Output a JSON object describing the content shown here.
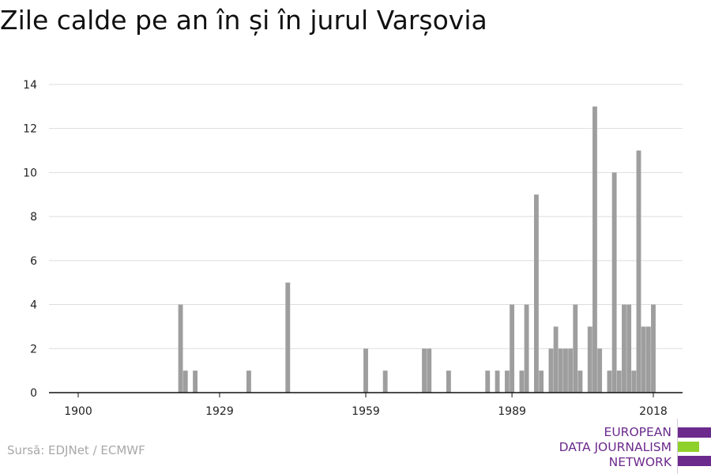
{
  "chart_data": {
    "type": "bar",
    "title": "Zile calde pe an în și în jurul Varșovia",
    "xlabel": "",
    "ylabel": "",
    "x_ticks": [
      1900,
      1929,
      1959,
      1989,
      2018
    ],
    "y_ticks": [
      0,
      2,
      4,
      6,
      8,
      10,
      12,
      14
    ],
    "xlim": [
      1894,
      2024
    ],
    "ylim": [
      0,
      14.5
    ],
    "grid": true,
    "bar_color": "#9e9e9e",
    "points": [
      {
        "x": 1921,
        "y": 4
      },
      {
        "x": 1922,
        "y": 1
      },
      {
        "x": 1924,
        "y": 1
      },
      {
        "x": 1935,
        "y": 1
      },
      {
        "x": 1943,
        "y": 5
      },
      {
        "x": 1959,
        "y": 2
      },
      {
        "x": 1963,
        "y": 1
      },
      {
        "x": 1971,
        "y": 2
      },
      {
        "x": 1972,
        "y": 2
      },
      {
        "x": 1976,
        "y": 1
      },
      {
        "x": 1984,
        "y": 1
      },
      {
        "x": 1986,
        "y": 1
      },
      {
        "x": 1988,
        "y": 1
      },
      {
        "x": 1989,
        "y": 4
      },
      {
        "x": 1991,
        "y": 1
      },
      {
        "x": 1992,
        "y": 4
      },
      {
        "x": 1994,
        "y": 9
      },
      {
        "x": 1995,
        "y": 1
      },
      {
        "x": 1997,
        "y": 2
      },
      {
        "x": 1998,
        "y": 3
      },
      {
        "x": 1999,
        "y": 2
      },
      {
        "x": 2000,
        "y": 2
      },
      {
        "x": 2001,
        "y": 2
      },
      {
        "x": 2002,
        "y": 4
      },
      {
        "x": 2003,
        "y": 1
      },
      {
        "x": 2005,
        "y": 3
      },
      {
        "x": 2006,
        "y": 13
      },
      {
        "x": 2007,
        "y": 2
      },
      {
        "x": 2009,
        "y": 1
      },
      {
        "x": 2010,
        "y": 10
      },
      {
        "x": 2011,
        "y": 1
      },
      {
        "x": 2012,
        "y": 4
      },
      {
        "x": 2013,
        "y": 4
      },
      {
        "x": 2014,
        "y": 1
      },
      {
        "x": 2015,
        "y": 11
      },
      {
        "x": 2016,
        "y": 3
      },
      {
        "x": 2017,
        "y": 3
      },
      {
        "x": 2018,
        "y": 4
      }
    ]
  },
  "source": "Sursă: EDJNet / ECMWF",
  "logo": {
    "line1": "EUROPEAN",
    "line2": "DATA JOURNALISM",
    "line3": "NETWORK",
    "color_purple": "#6b2a8c",
    "color_green": "#8fd12b"
  }
}
